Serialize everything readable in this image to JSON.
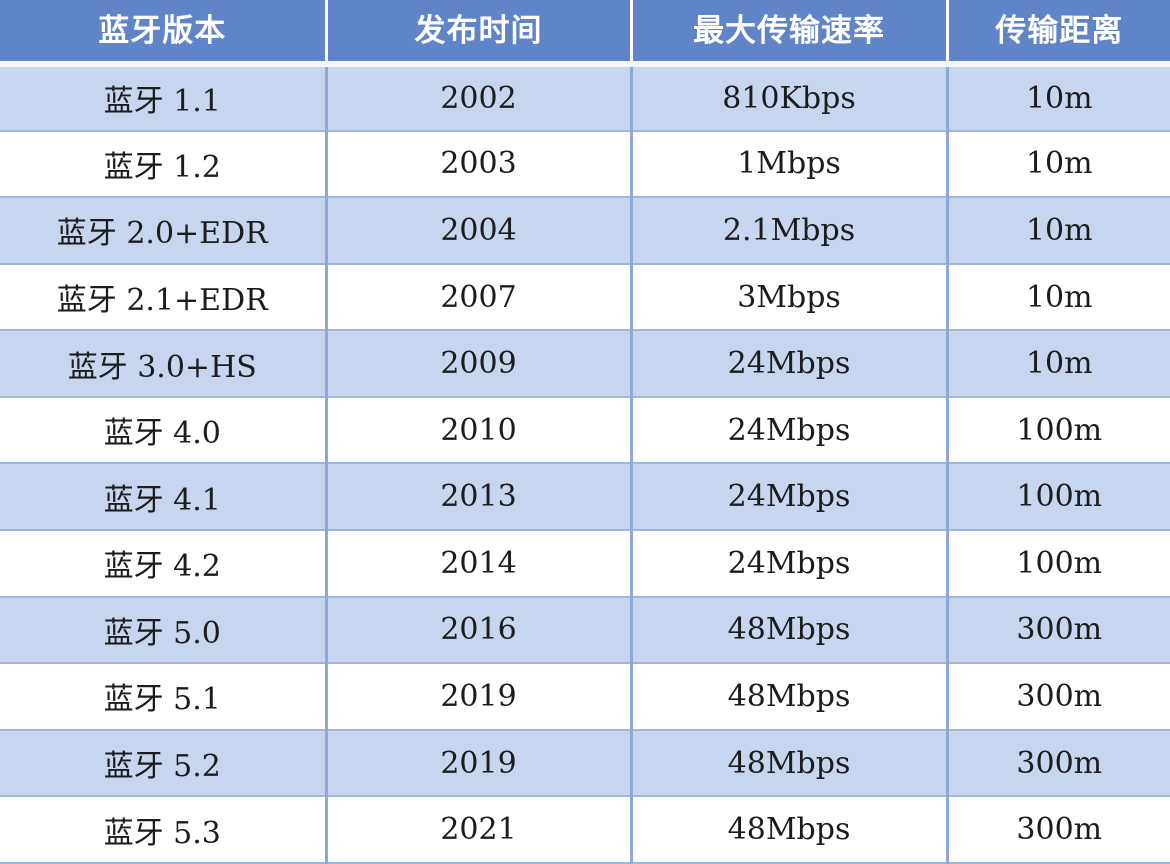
{
  "table": {
    "headers": [
      "蓝牙版本",
      "发布时间",
      "最大传输速率",
      "传输距离"
    ],
    "rows": [
      [
        "蓝牙 1.1",
        "2002",
        "810Kbps",
        "10m"
      ],
      [
        "蓝牙 1.2",
        "2003",
        "1Mbps",
        "10m"
      ],
      [
        "蓝牙 2.0+EDR",
        "2004",
        "2.1Mbps",
        "10m"
      ],
      [
        "蓝牙 2.1+EDR",
        "2007",
        "3Mbps",
        "10m"
      ],
      [
        "蓝牙 3.0+HS",
        "2009",
        "24Mbps",
        "10m"
      ],
      [
        "蓝牙 4.0",
        "2010",
        "24Mbps",
        "100m"
      ],
      [
        "蓝牙 4.1",
        "2013",
        "24Mbps",
        "100m"
      ],
      [
        "蓝牙 4.2",
        "2014",
        "24Mbps",
        "100m"
      ],
      [
        "蓝牙 5.0",
        "2016",
        "48Mbps",
        "300m"
      ],
      [
        "蓝牙 5.1",
        "2019",
        "48Mbps",
        "300m"
      ],
      [
        "蓝牙 5.2",
        "2019",
        "48Mbps",
        "300m"
      ],
      [
        "蓝牙 5.3",
        "2021",
        "48Mbps",
        "300m"
      ]
    ]
  },
  "colors": {
    "header_bg": "#5f84c8",
    "row_alt_bg": "#c7d6ee",
    "row_bg": "#ffffff",
    "text": "#1c1c1c"
  }
}
